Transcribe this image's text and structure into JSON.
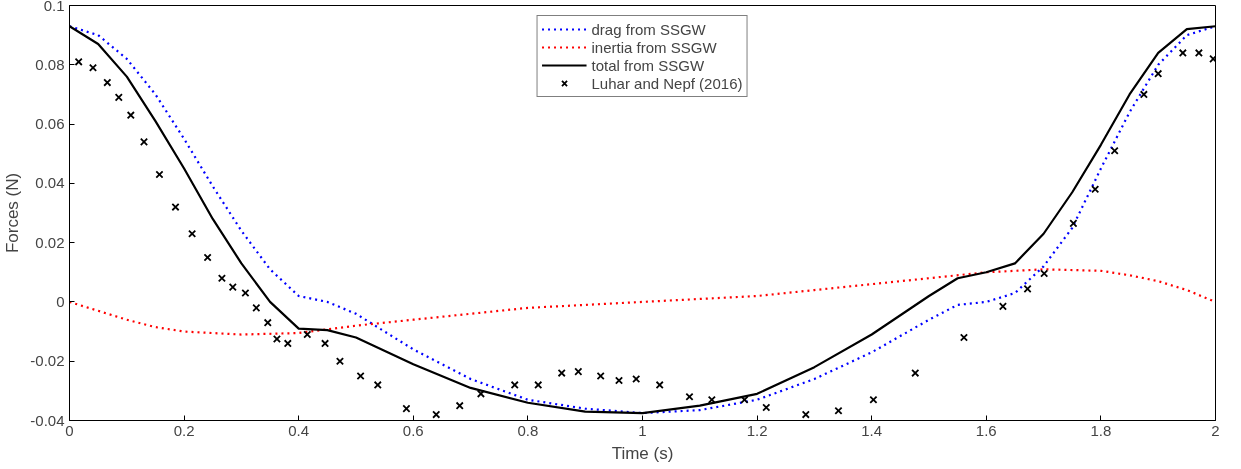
{
  "chart_data": {
    "type": "line",
    "xlabel": "Time (s)",
    "ylabel": "Forces (N)",
    "xlim": [
      0,
      2
    ],
    "ylim": [
      -0.04,
      0.1
    ],
    "xticks": [
      0,
      0.2,
      0.4,
      0.6,
      0.8,
      1,
      1.2,
      1.4,
      1.6,
      1.8,
      2
    ],
    "yticks": [
      -0.04,
      -0.02,
      0,
      0.02,
      0.04,
      0.06,
      0.08,
      0.1
    ],
    "grid": false,
    "legend": "top",
    "series": [
      {
        "name": "drag from SSGW",
        "color": "#0000ff",
        "line_style": "dotted",
        "x": [
          0,
          0.05,
          0.1,
          0.15,
          0.2,
          0.25,
          0.3,
          0.35,
          0.4,
          0.45,
          0.5,
          0.55,
          0.6,
          0.7,
          0.8,
          0.9,
          1.0,
          1.1,
          1.2,
          1.3,
          1.4,
          1.5,
          1.55,
          1.6,
          1.65,
          1.7,
          1.75,
          1.8,
          1.85,
          1.9,
          1.95,
          2.0
        ],
        "values": [
          0.093,
          0.09,
          0.082,
          0.07,
          0.055,
          0.039,
          0.024,
          0.011,
          0.002,
          0.0,
          -0.004,
          -0.01,
          -0.016,
          -0.026,
          -0.033,
          -0.036,
          -0.0375,
          -0.0365,
          -0.033,
          -0.026,
          -0.017,
          -0.006,
          -0.001,
          0.0,
          0.003,
          0.012,
          0.025,
          0.045,
          0.064,
          0.08,
          0.09,
          0.093
        ]
      },
      {
        "name": "inertia from SSGW",
        "color": "#ff0000",
        "line_style": "dotted",
        "x": [
          0,
          0.05,
          0.1,
          0.15,
          0.2,
          0.3,
          0.4,
          0.5,
          0.6,
          0.7,
          0.8,
          0.9,
          1.0,
          1.1,
          1.2,
          1.3,
          1.4,
          1.5,
          1.6,
          1.7,
          1.8,
          1.85,
          1.9,
          1.95,
          2.0
        ],
        "values": [
          0,
          -0.003,
          -0.006,
          -0.0085,
          -0.01,
          -0.011,
          -0.0105,
          -0.008,
          -0.006,
          -0.004,
          -0.002,
          -0.001,
          0,
          0.001,
          0.002,
          0.004,
          0.006,
          0.008,
          0.01,
          0.011,
          0.0105,
          0.009,
          0.007,
          0.004,
          0
        ]
      },
      {
        "name": "total from SSGW",
        "color": "#000000",
        "line_style": "solid",
        "x": [
          0,
          0.05,
          0.1,
          0.15,
          0.2,
          0.25,
          0.3,
          0.35,
          0.4,
          0.45,
          0.5,
          0.6,
          0.7,
          0.8,
          0.9,
          1.0,
          1.1,
          1.2,
          1.3,
          1.4,
          1.5,
          1.55,
          1.6,
          1.65,
          1.7,
          1.75,
          1.8,
          1.85,
          1.9,
          1.95,
          2.0
        ],
        "values": [
          0.093,
          0.087,
          0.076,
          0.061,
          0.045,
          0.028,
          0.013,
          0.0,
          -0.009,
          -0.0095,
          -0.012,
          -0.021,
          -0.029,
          -0.034,
          -0.037,
          -0.0375,
          -0.035,
          -0.031,
          -0.022,
          -0.011,
          0.002,
          0.008,
          0.01,
          0.013,
          0.023,
          0.037,
          0.053,
          0.07,
          0.084,
          0.092,
          0.093
        ]
      },
      {
        "name": "Luhar and Nepf (2016)",
        "type": "scatter",
        "color": "#000000",
        "marker": "cross",
        "x": [
          0.016,
          0.041,
          0.066,
          0.086,
          0.107,
          0.13,
          0.157,
          0.185,
          0.214,
          0.241,
          0.266,
          0.285,
          0.307,
          0.326,
          0.346,
          0.362,
          0.381,
          0.415,
          0.446,
          0.472,
          0.508,
          0.538,
          0.588,
          0.64,
          0.681,
          0.718,
          0.777,
          0.818,
          0.859,
          0.888,
          0.927,
          0.959,
          0.989,
          1.03,
          1.082,
          1.121,
          1.178,
          1.216,
          1.285,
          1.342,
          1.403,
          1.476,
          1.561,
          1.629,
          1.672,
          1.701,
          1.752,
          1.79,
          1.824,
          1.875,
          1.9,
          1.943,
          1.971,
          1.996
        ],
        "values": [
          0.081,
          0.079,
          0.074,
          0.069,
          0.063,
          0.054,
          0.043,
          0.032,
          0.023,
          0.015,
          0.008,
          0.005,
          0.003,
          -0.002,
          -0.007,
          -0.0125,
          -0.014,
          -0.011,
          -0.014,
          -0.02,
          -0.025,
          -0.028,
          -0.036,
          -0.038,
          -0.035,
          -0.031,
          -0.028,
          -0.028,
          -0.024,
          -0.0235,
          -0.025,
          -0.0265,
          -0.026,
          -0.028,
          -0.032,
          -0.033,
          -0.033,
          -0.0356,
          -0.038,
          -0.0367,
          -0.033,
          -0.024,
          -0.012,
          -0.0015,
          0.0044,
          0.0096,
          0.0265,
          0.038,
          0.051,
          0.07,
          0.077,
          0.084,
          0.084,
          0.082
        ]
      }
    ]
  }
}
